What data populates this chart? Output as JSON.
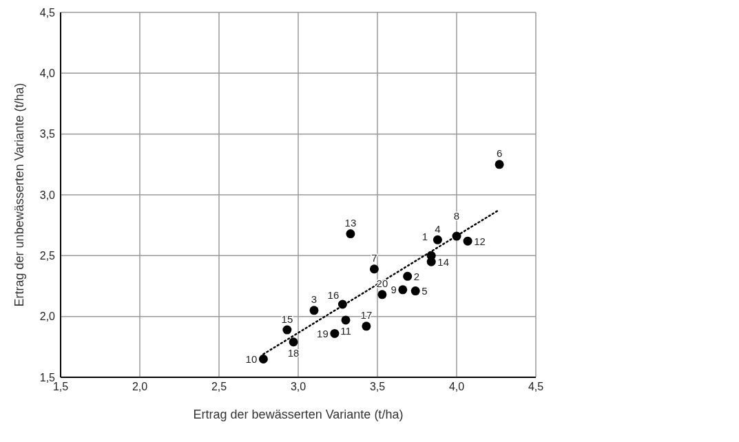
{
  "chart_data": {
    "type": "scatter",
    "xlabel": "Ertrag der bewässerten Variante (t/ha)",
    "ylabel": "Ertrag der unbewässerten Variante (t/ha)",
    "xlim": [
      1.5,
      4.5
    ],
    "xticks": [
      {
        "value": 1.5,
        "label": "1,5"
      },
      {
        "value": 2.0,
        "label": "2,0"
      },
      {
        "value": 2.5,
        "label": "2,5"
      },
      {
        "value": 3.0,
        "label": "3,0"
      },
      {
        "value": 3.5,
        "label": "3,5"
      },
      {
        "value": 4.0,
        "label": "4,0"
      },
      {
        "value": 4.5,
        "label": "4,5"
      }
    ],
    "ylim": [
      1.5,
      4.5
    ],
    "yticks": [
      {
        "value": 1.5,
        "label": "1,5"
      },
      {
        "value": 2.0,
        "label": "2,0"
      },
      {
        "value": 2.5,
        "label": "2,5"
      },
      {
        "value": 3.0,
        "label": "3,0"
      },
      {
        "value": 3.5,
        "label": "3,5"
      },
      {
        "value": 4.0,
        "label": "4,0"
      },
      {
        "value": 4.5,
        "label": "4,5"
      }
    ],
    "grid": true,
    "marker": "circle",
    "series": [
      {
        "type": "scatter",
        "color": "#000000",
        "x": [
          3.84,
          3.69,
          3.1,
          3.88,
          3.74,
          4.27,
          3.48,
          4.0,
          3.66,
          2.78,
          3.3,
          4.07,
          3.33,
          3.84,
          2.93,
          3.28,
          3.43,
          2.97,
          3.23,
          3.53
        ],
        "values": [
          2.5,
          2.33,
          2.05,
          2.63,
          2.21,
          3.25,
          2.39,
          2.66,
          2.22,
          1.65,
          1.97,
          2.62,
          2.68,
          2.45,
          1.89,
          2.1,
          1.92,
          1.79,
          1.86,
          2.18
        ]
      },
      {
        "type": "line",
        "color": "#000000",
        "line_style": "dotted",
        "marker": "none",
        "x": [
          2.78,
          4.26
        ],
        "values": [
          1.69,
          2.87
        ]
      }
    ],
    "annotations": [
      {
        "text": "1",
        "x": 3.84,
        "y": 2.5
      },
      {
        "text": "2",
        "x": 3.69,
        "y": 2.33
      },
      {
        "text": "3",
        "x": 3.1,
        "y": 2.05
      },
      {
        "text": "4",
        "x": 3.88,
        "y": 2.63
      },
      {
        "text": "5",
        "x": 3.74,
        "y": 2.21
      },
      {
        "text": "6",
        "x": 4.27,
        "y": 3.25
      },
      {
        "text": "7",
        "x": 3.48,
        "y": 2.39
      },
      {
        "text": "8",
        "x": 4.0,
        "y": 2.66
      },
      {
        "text": "9",
        "x": 3.66,
        "y": 2.22
      },
      {
        "text": "10",
        "x": 2.78,
        "y": 1.65
      },
      {
        "text": "11",
        "x": 3.3,
        "y": 1.97
      },
      {
        "text": "12",
        "x": 4.07,
        "y": 2.62
      },
      {
        "text": "13",
        "x": 3.33,
        "y": 2.68
      },
      {
        "text": "14",
        "x": 3.84,
        "y": 2.45
      },
      {
        "text": "15",
        "x": 2.93,
        "y": 1.89
      },
      {
        "text": "16",
        "x": 3.28,
        "y": 2.1
      },
      {
        "text": "17",
        "x": 3.43,
        "y": 1.92
      },
      {
        "text": "18",
        "x": 2.97,
        "y": 1.79
      },
      {
        "text": "19",
        "x": 3.23,
        "y": 1.86
      },
      {
        "text": "20",
        "x": 3.53,
        "y": 2.18
      }
    ]
  }
}
